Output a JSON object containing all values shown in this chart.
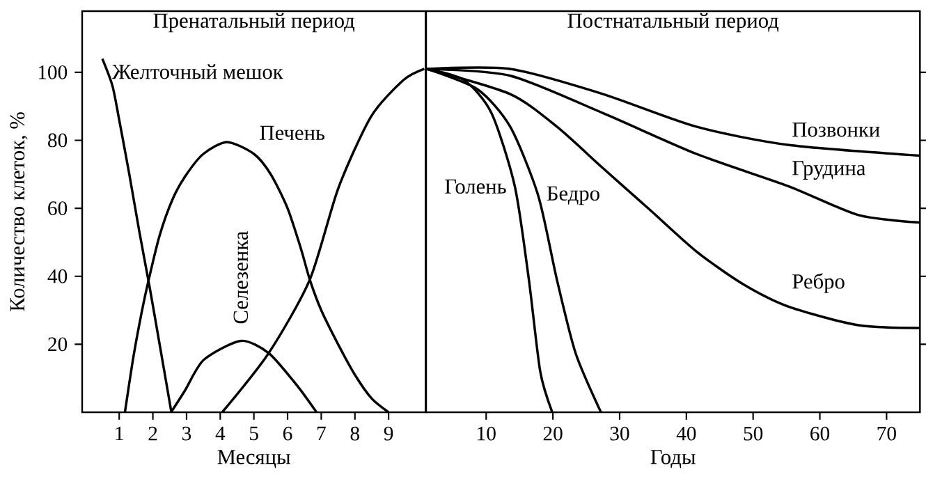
{
  "chart_data": [
    {
      "type": "line",
      "title": "Пренатальный период",
      "xlabel": "Месяцы",
      "ylabel": "Количество клеток, %",
      "xlim": [
        -0.1,
        10.1
      ],
      "ylim": [
        0,
        118
      ],
      "xticks": [
        1,
        2,
        3,
        4,
        5,
        6,
        7,
        8,
        9
      ],
      "yticks": [
        20,
        40,
        60,
        80,
        100
      ],
      "grid": false,
      "marker": "none",
      "line_style": "solid",
      "series": [
        {
          "name": "Желточный мешок",
          "color": "#000000",
          "x": [
            0.5,
            0.8,
            1.0,
            1.3,
            1.6,
            1.9,
            2.2,
            2.55
          ],
          "values": [
            104,
            96,
            86,
            70,
            53,
            37,
            20,
            0
          ]
        },
        {
          "name": "Печень",
          "color": "#000000",
          "x": [
            1.17,
            1.4,
            1.6,
            1.83,
            2.2,
            2.6,
            3.0,
            3.5,
            4.2,
            5.0,
            5.5,
            6.0,
            6.4,
            6.66,
            7.0,
            7.5,
            8.0,
            8.5,
            9.0
          ],
          "values": [
            0,
            15,
            26,
            37,
            52,
            63,
            70,
            76,
            79.5,
            76,
            70,
            60,
            48,
            39,
            30,
            20,
            11,
            4,
            0
          ]
        },
        {
          "name": "Селезенка",
          "color": "#000000",
          "x": [
            2.54,
            2.96,
            3.51,
            4.61,
            5.44,
            6.27,
            6.86
          ],
          "values": [
            0,
            6.5,
            15.4,
            21,
            17.4,
            8,
            0
          ]
        },
        {
          "color": "#000000",
          "x": [
            4.06,
            5.44,
            6.66,
            7.51,
            8.48,
            9.44,
            10.06
          ],
          "values": [
            0,
            17.4,
            39,
            66,
            87,
            97.7,
            101
          ]
        }
      ]
    },
    {
      "type": "line",
      "title": "Постнатальный период",
      "xlabel": "Годы",
      "xlim": [
        1,
        75
      ],
      "ylim": [
        0,
        118
      ],
      "xticks": [
        10,
        20,
        30,
        40,
        50,
        60,
        70
      ],
      "yticks": [
        20,
        40,
        60,
        80,
        100
      ],
      "tick_labels": "x",
      "grid": false,
      "marker": "none",
      "line_style": "solid",
      "series": [
        {
          "name": "Позвонки",
          "color": "#000000",
          "x": [
            1.1,
            13.6,
            27.5,
            41.5,
            55.4,
            75
          ],
          "values": [
            101,
            101,
            93.6,
            84,
            78.6,
            75.5
          ]
        },
        {
          "name": "Грудина",
          "color": "#000000",
          "x": [
            1.1,
            13.6,
            27.5,
            41.5,
            55.4,
            65.8,
            75
          ],
          "values": [
            101,
            99,
            88,
            76,
            66.4,
            58,
            55.8
          ]
        },
        {
          "name": "Ребро",
          "color": "#000000",
          "x": [
            1.1,
            13.6,
            20.6,
            27.5,
            34.5,
            41.5,
            48.4,
            55.4,
            65.8,
            75
          ],
          "values": [
            101,
            93.6,
            84,
            71.8,
            59.6,
            47.3,
            37.8,
            31,
            25.6,
            24.8
          ]
        },
        {
          "name": "Голень",
          "color": "#000000",
          "x": [
            1.1,
            6.7,
            10.8,
            14.3,
            16.4,
            18.1,
            19.9
          ],
          "values": [
            101,
            97.7,
            88,
            66.4,
            39,
            12,
            0
          ]
        },
        {
          "name": "Бедро",
          "color": "#000000",
          "x": [
            1.1,
            8.7,
            13.6,
            17.8,
            20.6,
            23.4,
            27.2
          ],
          "values": [
            101,
            95,
            84,
            63.7,
            39,
            17.4,
            0
          ]
        }
      ]
    }
  ]
}
